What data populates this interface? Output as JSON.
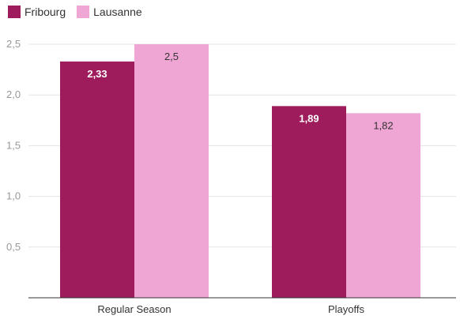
{
  "chart_data": {
    "type": "bar",
    "categories": [
      "Regular Season",
      "Playoffs"
    ],
    "series": [
      {
        "name": "Fribourg",
        "values": [
          2.33,
          1.89
        ],
        "labels": [
          "2,33",
          "1,89"
        ],
        "color": "#9e1c5c",
        "label_color": "#ffffff"
      },
      {
        "name": "Lausanne",
        "values": [
          2.5,
          1.82
        ],
        "labels": [
          "2,5",
          "1,82"
        ],
        "color": "#f0a6d4",
        "label_color": "#333333"
      }
    ],
    "yticks": [
      0.5,
      1.0,
      1.5,
      2.0,
      2.5
    ],
    "ytick_labels": [
      "0,5",
      "1,0",
      "1,5",
      "2,0",
      "2,5"
    ],
    "ylim": [
      0,
      2.5
    ],
    "grid": true,
    "legend_position": "top-left",
    "title": "",
    "xlabel": "",
    "ylabel": ""
  }
}
